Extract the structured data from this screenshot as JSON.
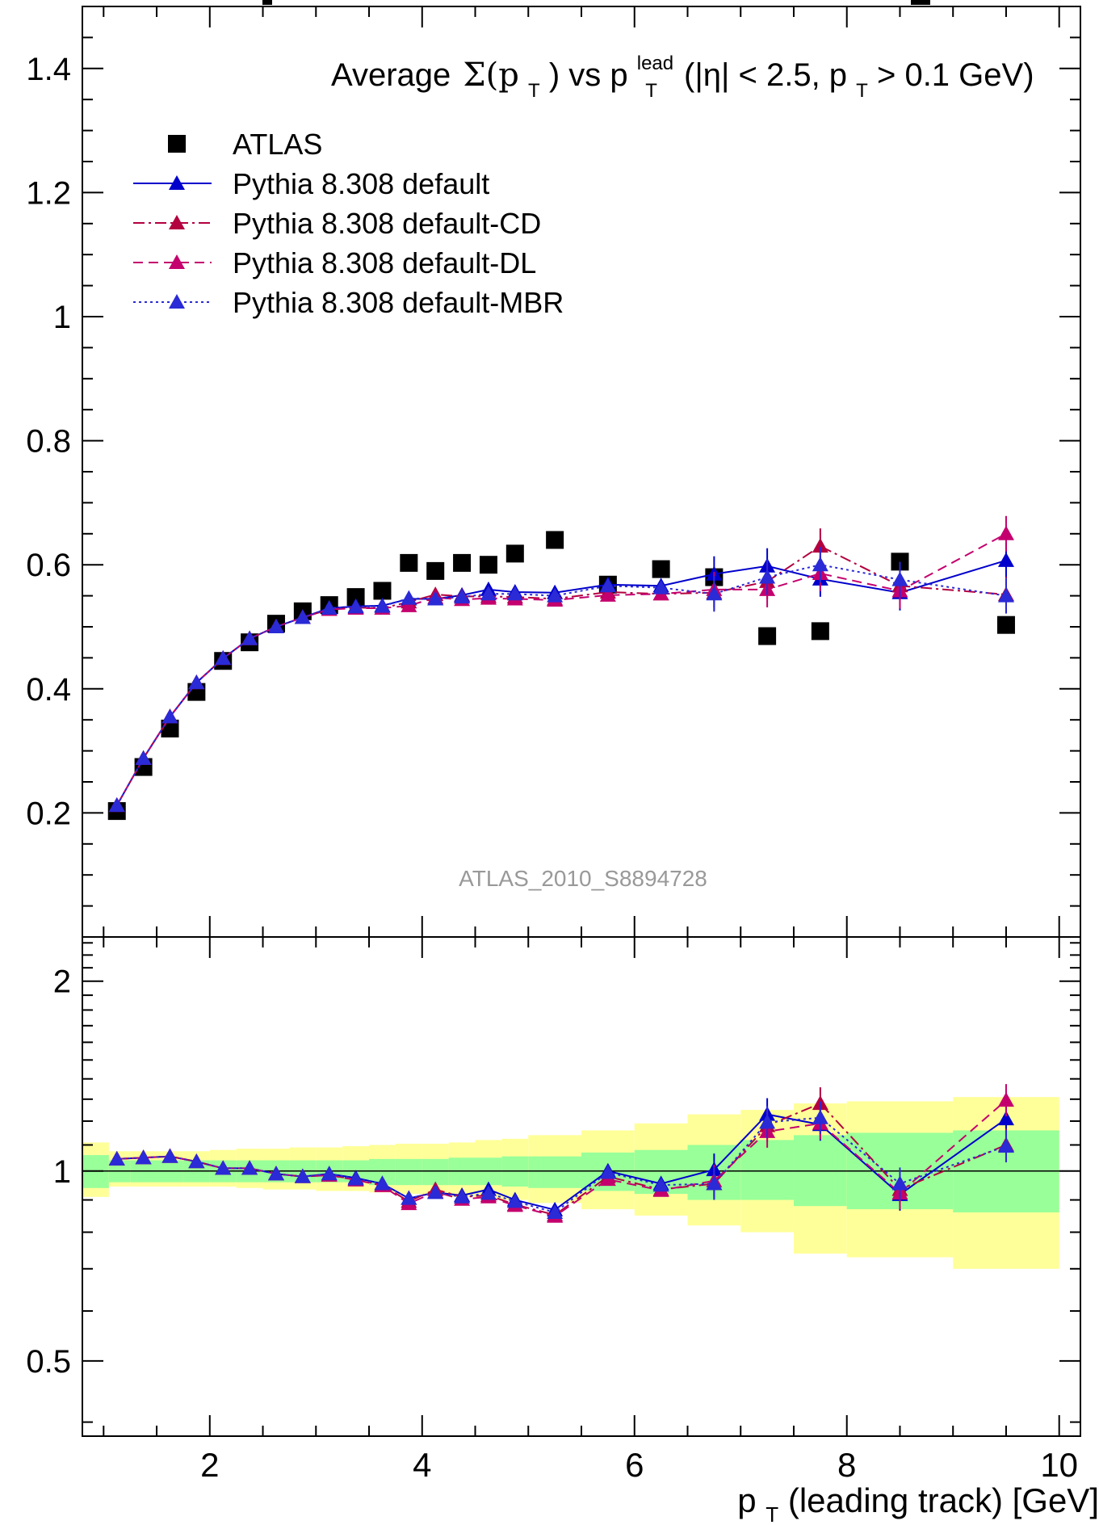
{
  "chart_data": {
    "type": "scatter",
    "title": "Average",
    "title_math": "Σ(p",
    "title_rest": ") vs p",
    "title_sup": "lead",
    "title_end": " (|η| < 2.5, p",
    "title_tail": " > 0.1 GeV)",
    "title_sub": "T",
    "analysis_label": "ATLAS_2010_S8894728",
    "xlabel": "p",
    "xlabel_sub": "T",
    "xlabel_rest": " (leading track) [GeV]",
    "xlim": [
      0.8,
      10.2
    ],
    "main_ylim": [
      0.0,
      1.5
    ],
    "ratio_ylim": [
      0.38,
      2.35
    ],
    "ratio_scale": "log",
    "main_yticks": [
      "0.2",
      "0.4",
      "0.6",
      "0.8",
      "1",
      "1.2",
      "1.4"
    ],
    "main_ytick_values": [
      0.2,
      0.4,
      0.6,
      0.8,
      1.0,
      1.2,
      1.4
    ],
    "ratio_yticks": [
      "0.5",
      "1",
      "2"
    ],
    "ratio_ytick_values": [
      0.5,
      1.0,
      2.0
    ],
    "xticks": [
      "2",
      "4",
      "6",
      "8",
      "10"
    ],
    "xtick_values": [
      2,
      4,
      6,
      8,
      10
    ],
    "legend_placement": "top-left",
    "x": [
      1.125,
      1.375,
      1.625,
      1.875,
      2.125,
      2.375,
      2.625,
      2.875,
      3.125,
      3.375,
      3.625,
      3.875,
      4.125,
      4.375,
      4.625,
      4.875,
      5.25,
      5.75,
      6.25,
      6.75,
      7.25,
      7.75,
      8.5,
      9.5
    ],
    "series": [
      {
        "name": "ATLAS",
        "color": "#000000",
        "marker": "square",
        "values": [
          0.203,
          0.274,
          0.336,
          0.395,
          0.445,
          0.475,
          0.505,
          0.525,
          0.535,
          0.548,
          0.558,
          0.603,
          0.59,
          0.603,
          0.6,
          0.618,
          0.64,
          0.568,
          0.593,
          0.58,
          0.485,
          0.493,
          0.605,
          0.503
        ]
      },
      {
        "name": "Pythia 8.308 default",
        "color": "#0000cc",
        "marker": "triangle",
        "dash": "",
        "values": [
          0.212,
          0.288,
          0.355,
          0.41,
          0.449,
          0.481,
          0.5,
          0.515,
          0.53,
          0.533,
          0.534,
          0.545,
          0.545,
          0.551,
          0.56,
          0.556,
          0.555,
          0.568,
          0.566,
          0.585,
          0.598,
          0.577,
          0.555,
          0.607
        ]
      },
      {
        "name": "Pythia 8.308 default-CD",
        "color": "#b3003f",
        "marker": "triangle",
        "dash": "14 5 3 5",
        "values": [
          0.212,
          0.288,
          0.355,
          0.41,
          0.449,
          0.481,
          0.5,
          0.515,
          0.528,
          0.531,
          0.53,
          0.54,
          0.552,
          0.549,
          0.549,
          0.548,
          0.545,
          0.556,
          0.553,
          0.555,
          0.573,
          0.63,
          0.566,
          0.552
        ]
      },
      {
        "name": "Pythia 8.308 default-DL",
        "color": "#c4006e",
        "marker": "triangle",
        "dash": "12 7",
        "values": [
          0.212,
          0.288,
          0.355,
          0.41,
          0.449,
          0.481,
          0.5,
          0.515,
          0.528,
          0.53,
          0.53,
          0.534,
          0.547,
          0.544,
          0.546,
          0.545,
          0.543,
          0.551,
          0.553,
          0.56,
          0.56,
          0.586,
          0.558,
          0.65
        ]
      },
      {
        "name": "Pythia 8.308 default-MBR",
        "color": "#2a2ad6",
        "marker": "triangle",
        "dash": "3 4",
        "values": [
          0.212,
          0.288,
          0.355,
          0.41,
          0.449,
          0.481,
          0.5,
          0.515,
          0.53,
          0.532,
          0.533,
          0.546,
          0.545,
          0.548,
          0.553,
          0.553,
          0.55,
          0.566,
          0.563,
          0.553,
          0.58,
          0.6,
          0.576,
          0.55
        ]
      }
    ],
    "ratio_series": [
      {
        "name": "Pythia 8.308 default",
        "values": [
          1.045,
          1.05,
          1.055,
          1.035,
          1.01,
          1.01,
          0.99,
          0.98,
          0.99,
          0.975,
          0.955,
          0.905,
          0.925,
          0.915,
          0.935,
          0.9,
          0.868,
          1.0,
          0.955,
          1.005,
          1.23,
          1.185,
          0.918,
          1.21
        ]
      },
      {
        "name": "Pythia 8.308 default-CD",
        "values": [
          1.045,
          1.05,
          1.055,
          1.035,
          1.01,
          1.01,
          0.99,
          0.98,
          0.985,
          0.97,
          0.95,
          0.895,
          0.935,
          0.91,
          0.915,
          0.885,
          0.852,
          0.98,
          0.935,
          0.955,
          1.18,
          1.28,
          0.935,
          1.1
        ]
      },
      {
        "name": "Pythia 8.308 default-DL",
        "values": [
          1.045,
          1.05,
          1.055,
          1.035,
          1.01,
          1.01,
          0.99,
          0.98,
          0.985,
          0.968,
          0.948,
          0.888,
          0.927,
          0.902,
          0.91,
          0.882,
          0.848,
          0.97,
          0.932,
          0.965,
          1.155,
          1.19,
          0.923,
          1.295
        ]
      },
      {
        "name": "Pythia 8.308 default-MBR",
        "values": [
          1.045,
          1.05,
          1.055,
          1.035,
          1.01,
          1.01,
          0.99,
          0.98,
          0.99,
          0.972,
          0.955,
          0.905,
          0.925,
          0.91,
          0.922,
          0.895,
          0.86,
          0.995,
          0.95,
          0.955,
          1.195,
          1.215,
          0.955,
          1.095
        ]
      }
    ],
    "band_edges": [
      0.8,
      1.05,
      1.25,
      1.5,
      1.75,
      2.0,
      2.25,
      2.5,
      2.75,
      3.0,
      3.25,
      3.5,
      3.75,
      4.0,
      4.25,
      4.5,
      4.75,
      5.0,
      5.5,
      6.0,
      6.5,
      7.0,
      7.5,
      8.0,
      9.0,
      10.0
    ],
    "band_inner": [
      [
        0.94,
        1.06
      ],
      [
        0.96,
        1.04
      ],
      [
        0.96,
        1.04
      ],
      [
        0.96,
        1.04
      ],
      [
        0.96,
        1.04
      ],
      [
        0.96,
        1.04
      ],
      [
        0.96,
        1.04
      ],
      [
        0.96,
        1.04
      ],
      [
        0.96,
        1.04
      ],
      [
        0.96,
        1.04
      ],
      [
        0.96,
        1.04
      ],
      [
        0.95,
        1.045
      ],
      [
        0.95,
        1.045
      ],
      [
        0.95,
        1.045
      ],
      [
        0.95,
        1.05
      ],
      [
        0.95,
        1.05
      ],
      [
        0.945,
        1.055
      ],
      [
        0.94,
        1.055
      ],
      [
        0.93,
        1.07
      ],
      [
        0.92,
        1.08
      ],
      [
        0.9,
        1.1
      ],
      [
        0.9,
        1.12
      ],
      [
        0.88,
        1.14
      ],
      [
        0.87,
        1.15
      ],
      [
        0.86,
        1.16
      ]
    ],
    "band_outer": [
      [
        0.91,
        1.11
      ],
      [
        0.945,
        1.075
      ],
      [
        0.945,
        1.075
      ],
      [
        0.945,
        1.075
      ],
      [
        0.945,
        1.075
      ],
      [
        0.945,
        1.08
      ],
      [
        0.94,
        1.085
      ],
      [
        0.935,
        1.085
      ],
      [
        0.935,
        1.09
      ],
      [
        0.93,
        1.09
      ],
      [
        0.93,
        1.095
      ],
      [
        0.925,
        1.1
      ],
      [
        0.92,
        1.105
      ],
      [
        0.915,
        1.105
      ],
      [
        0.91,
        1.11
      ],
      [
        0.905,
        1.12
      ],
      [
        0.9,
        1.125
      ],
      [
        0.89,
        1.14
      ],
      [
        0.87,
        1.16
      ],
      [
        0.85,
        1.19
      ],
      [
        0.82,
        1.23
      ],
      [
        0.8,
        1.25
      ],
      [
        0.74,
        1.28
      ],
      [
        0.73,
        1.29
      ],
      [
        0.7,
        1.31
      ]
    ],
    "band_colors": {
      "inner": "#99ff99",
      "outer": "#ffff99"
    },
    "reference_line": 1.0
  }
}
